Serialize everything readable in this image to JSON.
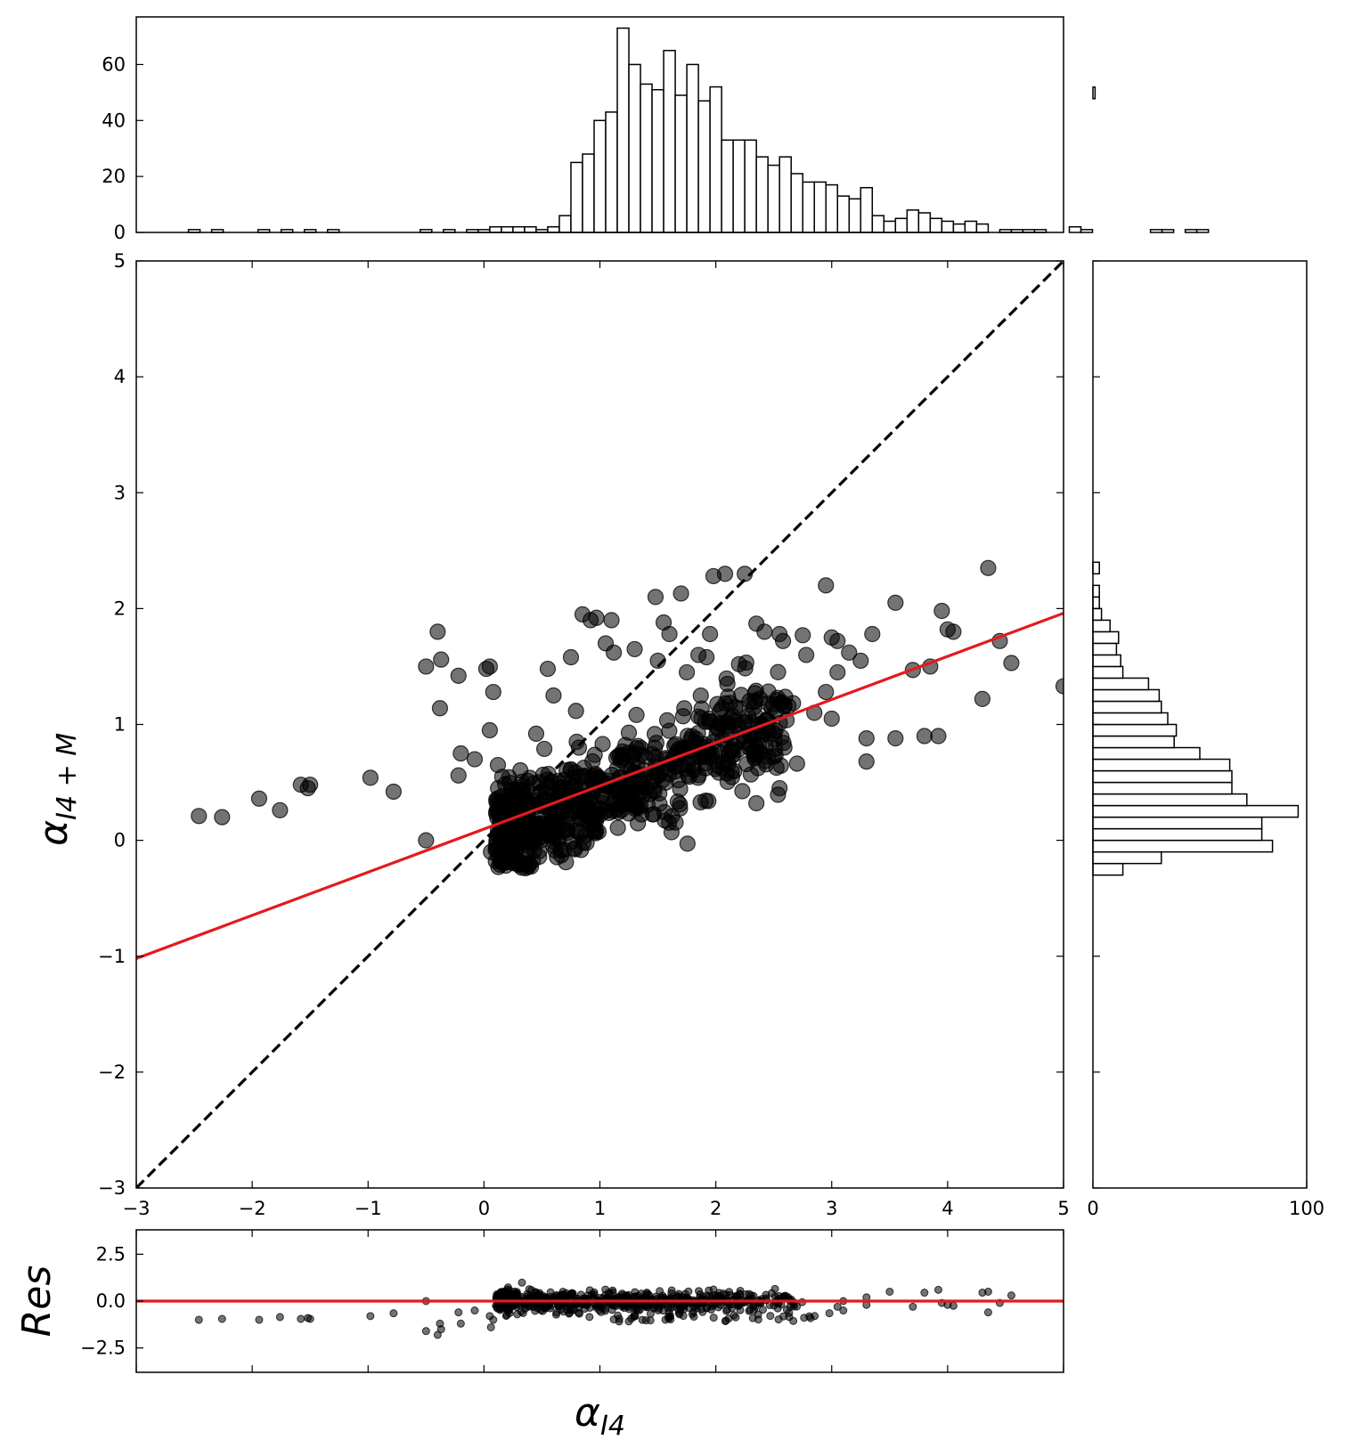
{
  "chart_data": [
    {
      "type": "bar",
      "panel": "top-histogram",
      "orientation": "vertical",
      "xlim": [
        -3,
        5
      ],
      "ylim": [
        0,
        77
      ],
      "yticks": [
        0,
        20,
        40,
        60
      ],
      "bin_start": -2.55,
      "bin_width": 0.1,
      "counts": [
        1,
        0,
        1,
        0,
        0,
        0,
        1,
        0,
        1,
        0,
        1,
        0,
        1,
        0,
        0,
        0,
        0,
        0,
        0,
        0,
        1,
        0,
        1,
        0,
        1,
        1,
        2,
        2,
        2,
        2,
        1,
        2,
        6,
        25,
        28,
        40,
        43,
        73,
        60,
        53,
        51,
        65,
        49,
        60,
        47,
        52,
        33,
        33,
        33,
        27,
        24,
        27,
        21,
        18,
        18,
        17,
        13,
        12,
        16,
        6,
        4,
        5,
        8,
        7,
        5,
        4,
        3,
        4,
        3,
        0,
        1,
        1,
        1,
        1,
        0,
        0,
        2,
        1,
        0,
        0,
        0,
        0,
        0,
        1,
        1,
        0,
        1,
        1
      ],
      "title": "",
      "xlabel": "",
      "ylabel": ""
    },
    {
      "type": "scatter",
      "panel": "main",
      "xlim": [
        -3,
        5
      ],
      "ylim": [
        -3,
        5
      ],
      "xticks": [
        -3,
        -2,
        -1,
        0,
        1,
        2,
        3,
        4,
        5
      ],
      "yticks": [
        -3,
        -2,
        -1,
        0,
        1,
        2,
        3,
        4,
        5
      ],
      "xlabel": "α",
      "xlabel_sub": "I4",
      "ylabel": "α",
      "ylabel_sub": "I4 + M",
      "outliers": [
        [
          -2.46,
          0.21
        ],
        [
          -2.26,
          0.2
        ],
        [
          -1.94,
          0.36
        ],
        [
          -1.76,
          0.26
        ],
        [
          -1.58,
          0.48
        ],
        [
          -1.52,
          0.45
        ],
        [
          -1.5,
          0.48
        ],
        [
          -0.98,
          0.54
        ],
        [
          -0.78,
          0.42
        ],
        [
          -0.5,
          0.0
        ],
        [
          -0.5,
          1.5
        ],
        [
          -0.4,
          1.8
        ],
        [
          -0.37,
          1.56
        ],
        [
          -0.38,
          1.14
        ],
        [
          -0.22,
          1.42
        ],
        [
          -0.22,
          0.56
        ],
        [
          -0.2,
          0.75
        ],
        [
          -0.08,
          0.7
        ],
        [
          0.02,
          1.48
        ],
        [
          0.05,
          1.5
        ],
        [
          0.08,
          1.28
        ],
        [
          0.05,
          0.95
        ],
        [
          0.12,
          0.65
        ],
        [
          0.06,
          -0.1
        ],
        [
          0.55,
          1.48
        ],
        [
          0.6,
          1.25
        ],
        [
          0.75,
          1.58
        ],
        [
          0.85,
          1.95
        ],
        [
          0.92,
          1.9
        ],
        [
          0.97,
          1.92
        ],
        [
          1.1,
          1.9
        ],
        [
          1.05,
          1.7
        ],
        [
          1.12,
          1.62
        ],
        [
          1.3,
          1.65
        ],
        [
          1.48,
          2.1
        ],
        [
          1.55,
          1.88
        ],
        [
          1.6,
          1.78
        ],
        [
          1.7,
          2.13
        ],
        [
          1.98,
          2.28
        ],
        [
          2.08,
          2.3
        ],
        [
          2.25,
          2.3
        ],
        [
          1.95,
          1.78
        ],
        [
          1.92,
          1.58
        ],
        [
          2.35,
          1.87
        ],
        [
          2.42,
          1.8
        ],
        [
          2.55,
          1.78
        ],
        [
          2.58,
          1.72
        ],
        [
          2.75,
          1.77
        ],
        [
          2.95,
          2.2
        ],
        [
          3.0,
          1.75
        ],
        [
          3.05,
          1.72
        ],
        [
          3.15,
          1.62
        ],
        [
          3.35,
          1.78
        ],
        [
          3.55,
          2.05
        ],
        [
          3.95,
          1.98
        ],
        [
          4.0,
          1.82
        ],
        [
          4.05,
          1.8
        ],
        [
          4.35,
          2.35
        ],
        [
          4.45,
          1.72
        ],
        [
          4.55,
          1.53
        ],
        [
          3.7,
          1.47
        ],
        [
          3.85,
          1.5
        ],
        [
          4.3,
          1.22
        ],
        [
          5.0,
          1.33
        ],
        [
          3.3,
          0.88
        ],
        [
          3.55,
          0.88
        ],
        [
          3.8,
          0.9
        ],
        [
          3.92,
          0.9
        ],
        [
          3.3,
          0.68
        ],
        [
          2.55,
          0.45
        ],
        [
          2.35,
          0.32
        ],
        [
          1.5,
          1.55
        ],
        [
          0.45,
          0.92
        ],
        [
          0.8,
          0.85
        ],
        [
          2.78,
          1.6
        ],
        [
          3.25,
          1.55
        ],
        [
          3.05,
          1.45
        ],
        [
          2.95,
          1.28
        ],
        [
          2.85,
          1.1
        ],
        [
          3.0,
          1.05
        ],
        [
          2.2,
          1.52
        ],
        [
          2.1,
          1.35
        ],
        [
          1.85,
          1.6
        ],
        [
          1.75,
          1.45
        ]
      ],
      "cluster_region": {
        "x_range": [
          0.05,
          2.6
        ],
        "y_center_slope": 0.4,
        "y_center_intercept": 0.0,
        "y_spread": 0.35,
        "count": 700
      },
      "series": [
        {
          "kind": "identity",
          "style": "dashed",
          "color": "#000000",
          "x": [
            -3,
            5
          ],
          "y": [
            -3,
            5
          ]
        },
        {
          "kind": "fit",
          "style": "solid",
          "color": "#e41a1c",
          "x": [
            -3,
            5
          ],
          "y": [
            -1.02,
            1.96
          ]
        }
      ]
    },
    {
      "type": "bar",
      "panel": "right-histogram",
      "orientation": "horizontal",
      "ylim": [
        -3,
        5
      ],
      "xlim": [
        0,
        100
      ],
      "xticks": [
        0,
        100
      ],
      "bin_start": -0.3,
      "bin_width": 0.1,
      "counts": [
        14,
        32,
        84,
        79,
        79,
        96,
        72,
        65,
        65,
        64,
        50,
        38,
        39,
        35,
        32,
        31,
        26,
        14,
        13,
        11,
        12,
        8,
        4,
        3,
        3,
        0,
        3,
        0,
        0,
        0,
        0,
        0,
        0,
        0,
        0,
        0,
        0,
        0,
        0,
        0,
        0,
        0,
        0,
        0,
        0,
        0,
        0,
        0,
        0,
        0,
        0,
        0,
        0,
        0,
        0,
        0,
        0,
        0,
        0,
        0,
        0,
        0,
        0,
        0,
        0,
        0,
        0,
        1
      ],
      "title": "",
      "xlabel": "",
      "ylabel": ""
    },
    {
      "type": "scatter",
      "panel": "residuals",
      "xlim": [
        -3,
        5
      ],
      "ylim": [
        -3.8,
        3.8
      ],
      "yticks": [
        -2.5,
        0.0,
        2.5
      ],
      "ytick_labels": [
        "−2.5",
        "0.0",
        "2.5"
      ],
      "ylabel": "Res",
      "xlabel": "",
      "zero_line_color": "#e41a1c",
      "outliers": [
        [
          -2.46,
          -1.0
        ],
        [
          -2.26,
          -0.95
        ],
        [
          -1.94,
          -1.0
        ],
        [
          -1.76,
          -0.85
        ],
        [
          -1.58,
          -0.95
        ],
        [
          -1.52,
          -0.9
        ],
        [
          -1.5,
          -0.95
        ],
        [
          -0.98,
          -0.8
        ],
        [
          -0.78,
          -0.65
        ],
        [
          -0.5,
          -1.6
        ],
        [
          -0.5,
          0.0
        ],
        [
          -0.4,
          -1.8
        ],
        [
          -0.37,
          -1.5
        ],
        [
          -0.38,
          -1.2
        ],
        [
          -0.22,
          -0.6
        ],
        [
          -0.2,
          -1.2
        ],
        [
          -0.08,
          -0.5
        ],
        [
          0.06,
          -1.4
        ],
        [
          0.08,
          -1.0
        ],
        [
          0.05,
          -0.8
        ],
        [
          3.1,
          0.0
        ],
        [
          3.3,
          -0.2
        ],
        [
          3.5,
          0.5
        ],
        [
          3.7,
          -0.3
        ],
        [
          3.8,
          0.45
        ],
        [
          3.92,
          0.6
        ],
        [
          3.95,
          -0.1
        ],
        [
          4.0,
          -0.2
        ],
        [
          4.05,
          -0.25
        ],
        [
          4.35,
          0.5
        ],
        [
          4.45,
          -0.1
        ],
        [
          4.55,
          0.3
        ],
        [
          4.3,
          0.45
        ],
        [
          4.35,
          -0.6
        ],
        [
          3.3,
          0.2
        ],
        [
          3.1,
          -0.5
        ],
        [
          2.98,
          -0.65
        ],
        [
          3.05,
          -0.3
        ]
      ]
    }
  ]
}
